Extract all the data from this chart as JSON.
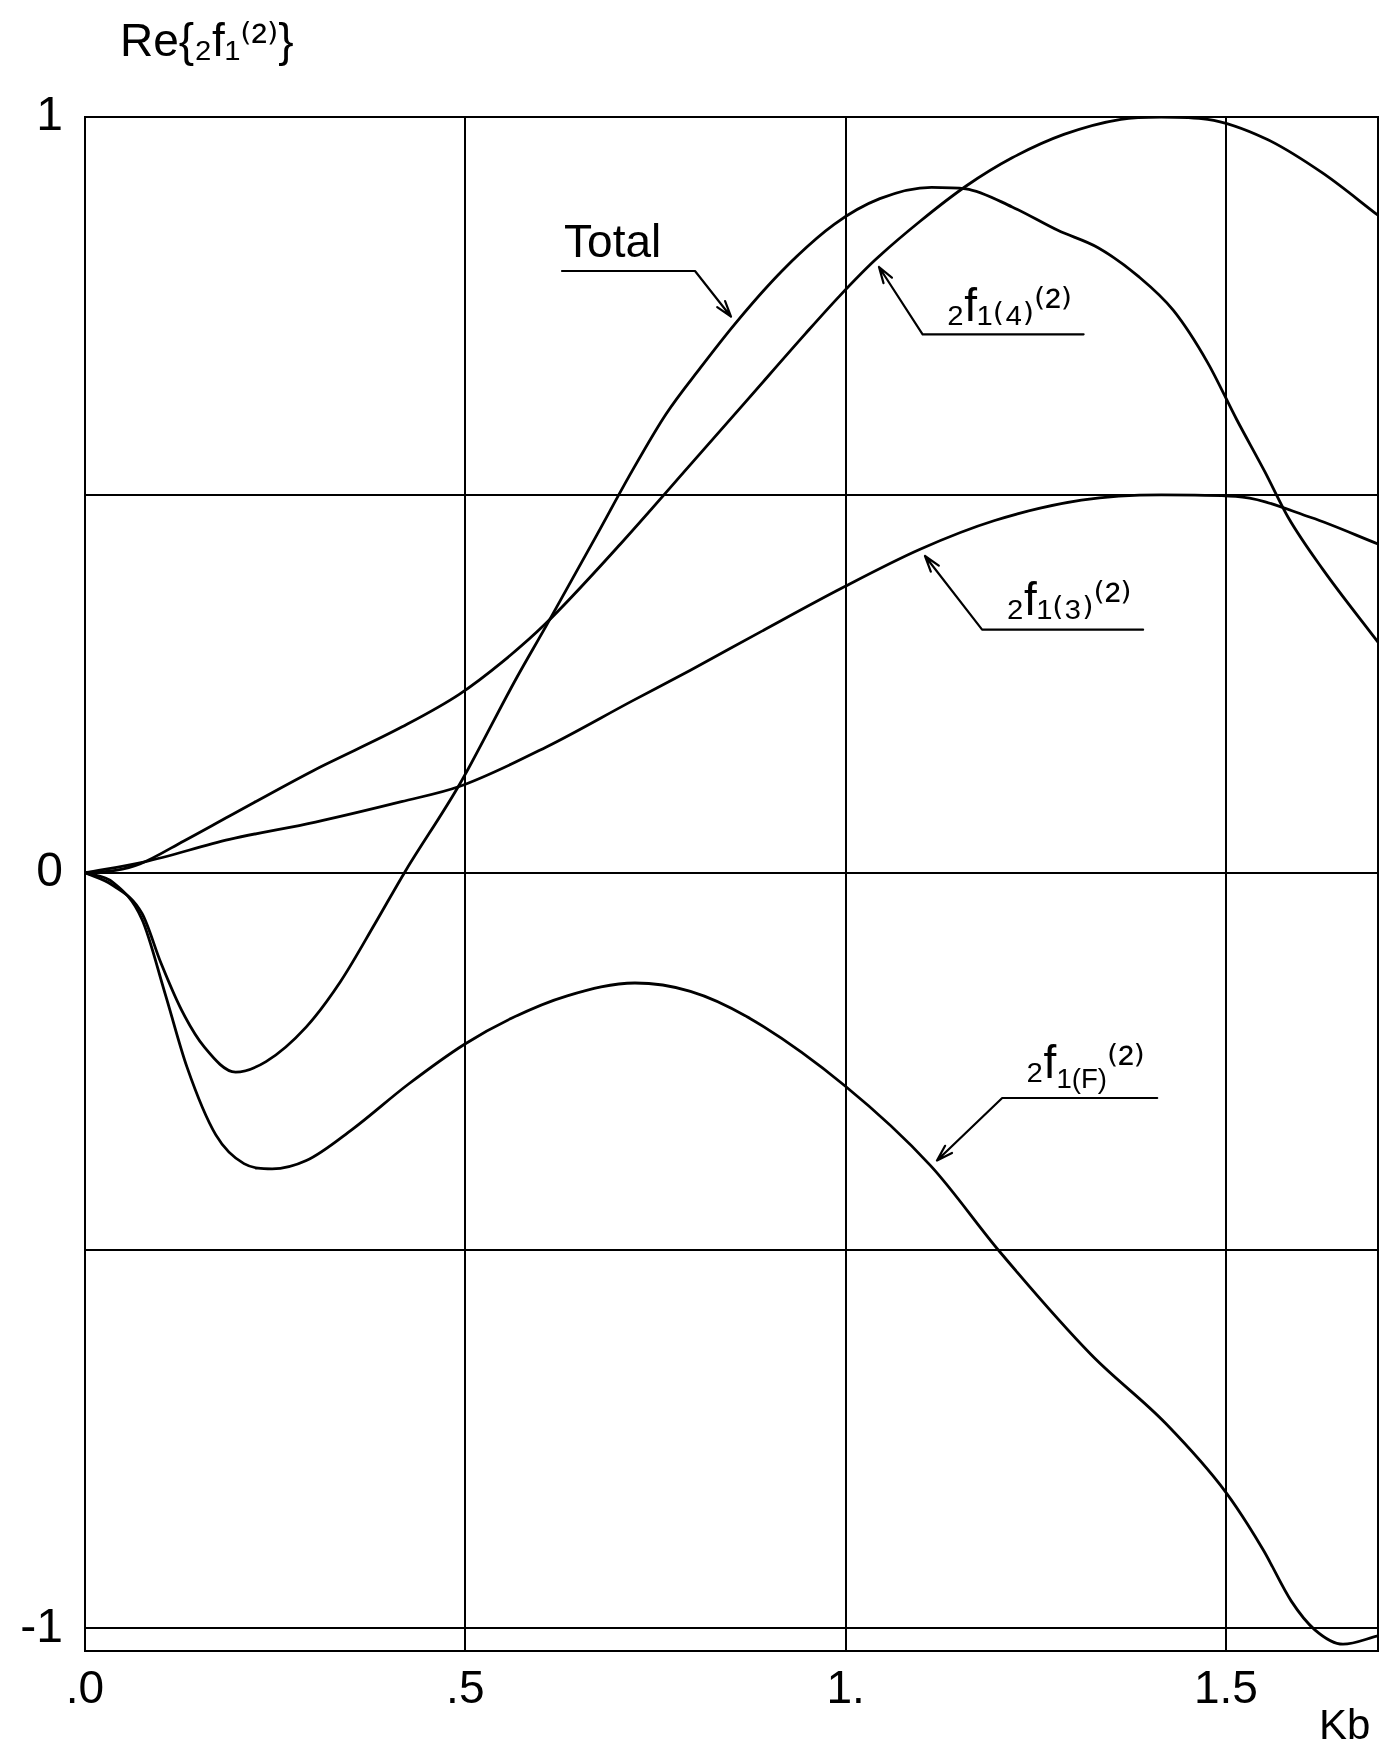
{
  "chart_data": {
    "type": "line",
    "ylabel": "Re{₂f₁⁽²⁾}",
    "xlabel": "Kb",
    "xlim": [
      0,
      1.7
    ],
    "xticks": [
      {
        "value": 0,
        "label": ".0"
      },
      {
        "value": 0.5,
        "label": ".5"
      },
      {
        "value": 1,
        "label": "1."
      },
      1.5
    ],
    "ylim": [
      -1.03,
      1
    ],
    "yticks": [
      -1,
      {
        "value": -0.5,
        "label": null
      },
      0,
      {
        "value": 0.5,
        "label": null
      },
      1
    ],
    "grid": true,
    "series": [
      {
        "name": "Total",
        "color": "#000000",
        "x": [
          0,
          0.037,
          0.075,
          0.1,
          0.127,
          0.157,
          0.198,
          0.238,
          0.291,
          0.336,
          0.381,
          0.42,
          0.492,
          0.567,
          0.606,
          0.673,
          0.719,
          0.764,
          0.809,
          0.856,
          0.917,
          0.985,
          1.045,
          1.113,
          1.158,
          1.219,
          1.279,
          1.332,
          1.385,
          1.431,
          1.476,
          1.514,
          1.551,
          1.582,
          1.627,
          1.7
        ],
        "values": [
          0,
          -0.017,
          -0.054,
          -0.12,
          -0.182,
          -0.231,
          -0.264,
          -0.25,
          -0.204,
          -0.144,
          -0.068,
          0,
          0.116,
          0.257,
          0.326,
          0.447,
          0.531,
          0.607,
          0.668,
          0.728,
          0.797,
          0.858,
          0.892,
          0.907,
          0.905,
          0.881,
          0.85,
          0.827,
          0.789,
          0.744,
          0.675,
          0.6,
          0.531,
          0.47,
          0.402,
          0.305
        ]
      },
      {
        "name": "₂f₁₍₄₎⁽²⁾",
        "color": "#000000",
        "x": [
          0,
          0.04,
          0.073,
          0.13,
          0.19,
          0.3,
          0.417,
          0.492,
          0.55,
          0.605,
          0.704,
          0.796,
          0.872,
          0.947,
          0.992,
          1.038,
          1.098,
          1.159,
          1.219,
          1.287,
          1.362,
          1.415,
          1.476,
          1.551,
          1.627,
          1.7
        ],
        "values": [
          0,
          0.003,
          0.012,
          0.042,
          0.075,
          0.135,
          0.193,
          0.236,
          0.28,
          0.329,
          0.435,
          0.54,
          0.627,
          0.713,
          0.763,
          0.81,
          0.862,
          0.909,
          0.946,
          0.977,
          0.997,
          1.0,
          0.997,
          0.972,
          0.926,
          0.87
        ]
      },
      {
        "name": "₂f₁₍₃₎⁽²⁾",
        "color": "#000000",
        "x": [
          0,
          0.077,
          0.19,
          0.303,
          0.416,
          0.492,
          0.606,
          0.719,
          0.796,
          0.887,
          0.992,
          1.098,
          1.196,
          1.31,
          1.415,
          1.513,
          1.612,
          1.7
        ],
        "values": [
          0,
          0.014,
          0.044,
          0.067,
          0.094,
          0.114,
          0.166,
          0.227,
          0.268,
          0.318,
          0.375,
          0.428,
          0.466,
          0.493,
          0.5,
          0.498,
          0.47,
          0.435
        ]
      },
      {
        "name": "₂f$_{1(F)}$⁽²⁾",
        "color": "#000000",
        "x": [
          0,
          0.037,
          0.075,
          0.105,
          0.134,
          0.172,
          0.209,
          0.246,
          0.291,
          0.351,
          0.425,
          0.499,
          0.56,
          0.634,
          0.723,
          0.796,
          0.871,
          0.999,
          1.112,
          1.203,
          1.323,
          1.421,
          1.5,
          1.549,
          1.586,
          1.617,
          1.654,
          1.7
        ],
        "values": [
          0,
          -0.013,
          -0.062,
          -0.159,
          -0.257,
          -0.347,
          -0.385,
          -0.392,
          -0.381,
          -0.34,
          -0.28,
          -0.227,
          -0.193,
          -0.163,
          -0.146,
          -0.157,
          -0.191,
          -0.282,
          -0.388,
          -0.502,
          -0.638,
          -0.729,
          -0.82,
          -0.896,
          -0.964,
          -1.002,
          -1.021,
          -1.01
        ]
      }
    ]
  }
}
